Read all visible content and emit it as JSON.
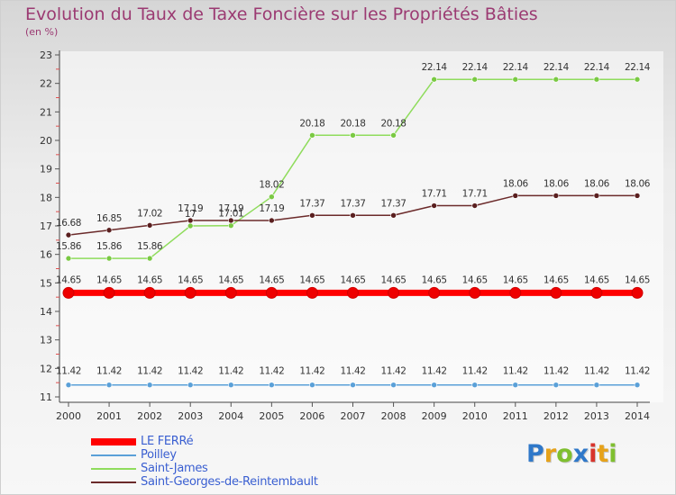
{
  "header": {
    "title": "Evolution du Taux de Taxe Foncière sur les Propriétés Bâties",
    "unit": "(en %)"
  },
  "logo_text": "Proxiti",
  "chart_data": {
    "type": "line",
    "title": "Evolution du Taux de Taxe Foncière sur les Propriétés Bâties",
    "ylabel": "(en %)",
    "xlabel": "",
    "ylim": [
      11,
      23
    ],
    "yticks": [
      "11",
      "12",
      "13",
      "14",
      "15",
      "16",
      "17",
      "18",
      "19",
      "20",
      "21",
      "22",
      "23"
    ],
    "categories": [
      "2000",
      "2001",
      "2002",
      "2003",
      "2004",
      "2005",
      "2006",
      "2007",
      "2008",
      "2009",
      "2010",
      "2011",
      "2012",
      "2013",
      "2014"
    ],
    "grid": false,
    "legend_position": "bottom-left",
    "series": [
      {
        "name": "LE FERRé",
        "color": "#ff0000",
        "values": [
          14.65,
          14.65,
          14.65,
          14.65,
          14.65,
          14.65,
          14.65,
          14.65,
          14.65,
          14.65,
          14.65,
          14.65,
          14.65,
          14.65,
          14.65
        ],
        "labels": [
          "14.65",
          "14.65",
          "14.65",
          "14.65",
          "14.65",
          "14.65",
          "14.65",
          "14.65",
          "14.65",
          "14.65",
          "14.65",
          "14.65",
          "14.65",
          "14.65",
          "14.65"
        ]
      },
      {
        "name": "Poilley",
        "color": "#5aa0d8",
        "values": [
          11.42,
          11.42,
          11.42,
          11.42,
          11.42,
          11.42,
          11.42,
          11.42,
          11.42,
          11.42,
          11.42,
          11.42,
          11.42,
          11.42,
          11.42
        ],
        "labels": [
          "11.42",
          "11.42",
          "11.42",
          "11.42",
          "11.42",
          "11.42",
          "11.42",
          "11.42",
          "11.42",
          "11.42",
          "11.42",
          "11.42",
          "11.42",
          "11.42",
          "11.42"
        ]
      },
      {
        "name": "Saint-James",
        "color": "#8fdc5c",
        "values": [
          15.86,
          15.86,
          15.86,
          17.0,
          17.01,
          18.02,
          20.18,
          20.18,
          20.18,
          22.14,
          22.14,
          22.14,
          22.14,
          22.14,
          22.14
        ],
        "labels": [
          "15.86",
          "15.86",
          "15.86",
          "17",
          "17.01",
          "18.02",
          "20.18",
          "20.18",
          "20.18",
          "22.14",
          "22.14",
          "22.14",
          "22.14",
          "22.14",
          "22.14"
        ]
      },
      {
        "name": "Saint-Georges-de-Reintembault",
        "color": "#6b2a2a",
        "values": [
          16.68,
          16.85,
          17.02,
          17.19,
          17.19,
          17.19,
          17.37,
          17.37,
          17.37,
          17.71,
          17.71,
          18.06,
          18.06,
          18.06,
          18.06
        ],
        "labels": [
          "16.68",
          "16.85",
          "17.02",
          "17.19",
          "17.19",
          "17.19",
          "17.37",
          "17.37",
          "17.37",
          "17.71",
          "17.71",
          "18.06",
          "18.06",
          "18.06",
          "18.06"
        ]
      }
    ]
  }
}
